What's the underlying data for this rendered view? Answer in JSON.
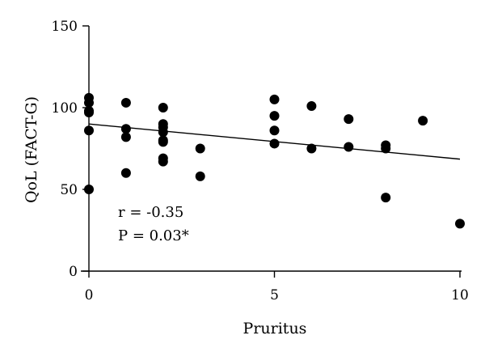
{
  "chart_data": {
    "type": "scatter",
    "title": "",
    "xlabel": "Pruritus",
    "ylabel": "QoL (FACT-G)",
    "xlim": [
      0,
      10
    ],
    "ylim": [
      0,
      150
    ],
    "x_ticks": [
      0,
      5,
      10
    ],
    "y_ticks": [
      0,
      50,
      100,
      150
    ],
    "x_tick_labels": [
      "0",
      "5",
      "10"
    ],
    "y_tick_labels": [
      "0",
      "50",
      "100",
      "150"
    ],
    "grid": false,
    "points": [
      {
        "x": 0,
        "y": 106
      },
      {
        "x": 0,
        "y": 103
      },
      {
        "x": 0,
        "y": 98
      },
      {
        "x": 0,
        "y": 97
      },
      {
        "x": 0,
        "y": 86
      },
      {
        "x": 0,
        "y": 50
      },
      {
        "x": 1,
        "y": 103
      },
      {
        "x": 1,
        "y": 87
      },
      {
        "x": 1,
        "y": 82
      },
      {
        "x": 1,
        "y": 60
      },
      {
        "x": 2,
        "y": 100
      },
      {
        "x": 2,
        "y": 90
      },
      {
        "x": 2,
        "y": 88
      },
      {
        "x": 2,
        "y": 85
      },
      {
        "x": 2,
        "y": 80
      },
      {
        "x": 2,
        "y": 79
      },
      {
        "x": 2,
        "y": 69
      },
      {
        "x": 2,
        "y": 67
      },
      {
        "x": 3,
        "y": 75
      },
      {
        "x": 3,
        "y": 58
      },
      {
        "x": 5,
        "y": 105
      },
      {
        "x": 5,
        "y": 95
      },
      {
        "x": 5,
        "y": 86
      },
      {
        "x": 5,
        "y": 78
      },
      {
        "x": 6,
        "y": 101
      },
      {
        "x": 6,
        "y": 75
      },
      {
        "x": 7,
        "y": 93
      },
      {
        "x": 7,
        "y": 76
      },
      {
        "x": 8,
        "y": 77
      },
      {
        "x": 8,
        "y": 75
      },
      {
        "x": 8,
        "y": 45
      },
      {
        "x": 9,
        "y": 92
      },
      {
        "x": 10,
        "y": 29
      }
    ],
    "fit_line": {
      "x": [
        0,
        10
      ],
      "y": [
        90,
        68.5
      ]
    },
    "annotations": [
      "r = -0.35",
      "P = 0.03*"
    ]
  }
}
